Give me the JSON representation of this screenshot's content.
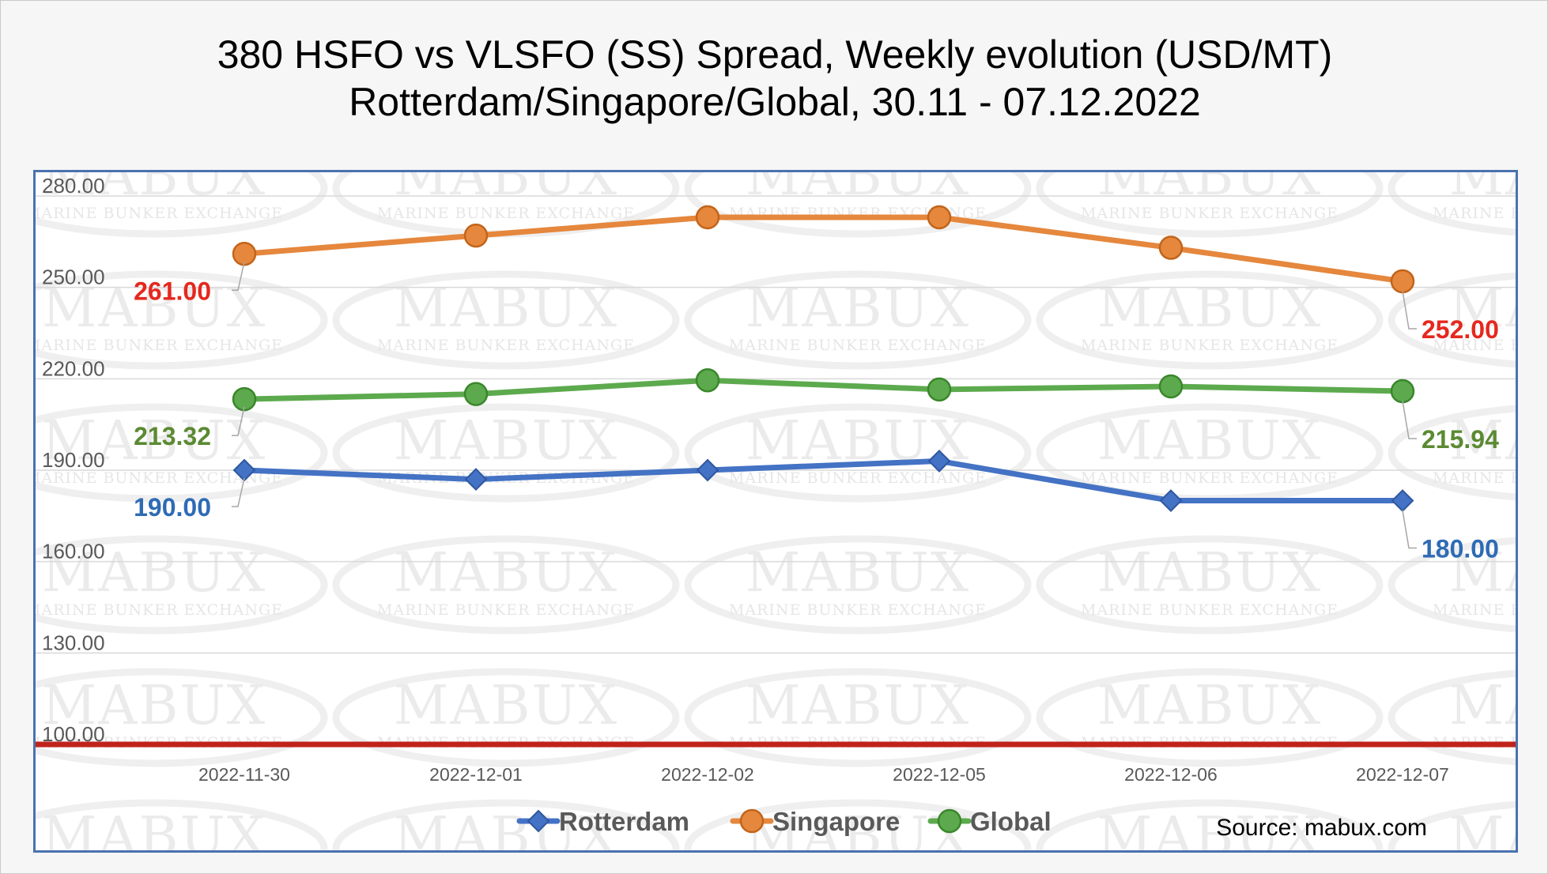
{
  "title": {
    "line1": "380 HSFO vs VLSFO (SS) Spread, Weekly evolution (USD/MT)",
    "line2": "Rotterdam/Singapore/Global, 30.11 - 07.12.2022"
  },
  "watermark": {
    "brand": "MABUX",
    "subtitle": "MARINE BUNKER EXCHANGE"
  },
  "source": "Source: mabux.com",
  "chart_data": {
    "type": "line",
    "x": [
      "2022-11-30",
      "2022-12-01",
      "2022-12-02",
      "2022-12-05",
      "2022-12-06",
      "2022-12-07"
    ],
    "yticks": [
      "100.00",
      "130.00",
      "160.00",
      "190.00",
      "220.00",
      "250.00",
      "280.00"
    ],
    "ylim": [
      100,
      280
    ],
    "grid": true,
    "legend_position": "bottom",
    "series": [
      {
        "name": "Rotterdam",
        "color": "#4472c4",
        "marker": "diamond",
        "values": [
          190.0,
          187.0,
          190.0,
          193.0,
          180.0,
          180.0
        ],
        "labels": [
          {
            "index": 0,
            "text": "190.00"
          },
          {
            "index": 5,
            "text": "180.00"
          }
        ],
        "label_color": "#2e6bb5"
      },
      {
        "name": "Singapore",
        "color": "#e5873d",
        "marker": "circle",
        "values": [
          261.0,
          267.0,
          273.0,
          273.0,
          263.0,
          252.0
        ],
        "labels": [
          {
            "index": 0,
            "text": "261.00"
          },
          {
            "index": 5,
            "text": "252.00"
          }
        ],
        "label_color": "#e5281e"
      },
      {
        "name": "Global",
        "color": "#5daa4e",
        "marker": "circle",
        "values": [
          213.32,
          215.0,
          219.5,
          216.5,
          217.5,
          215.94
        ],
        "labels": [
          {
            "index": 0,
            "text": "213.32"
          },
          {
            "index": 5,
            "text": "215.94"
          }
        ],
        "label_color": "#5b8a33"
      }
    ],
    "reference_line": {
      "value": 100,
      "color": "#c0231b"
    }
  }
}
